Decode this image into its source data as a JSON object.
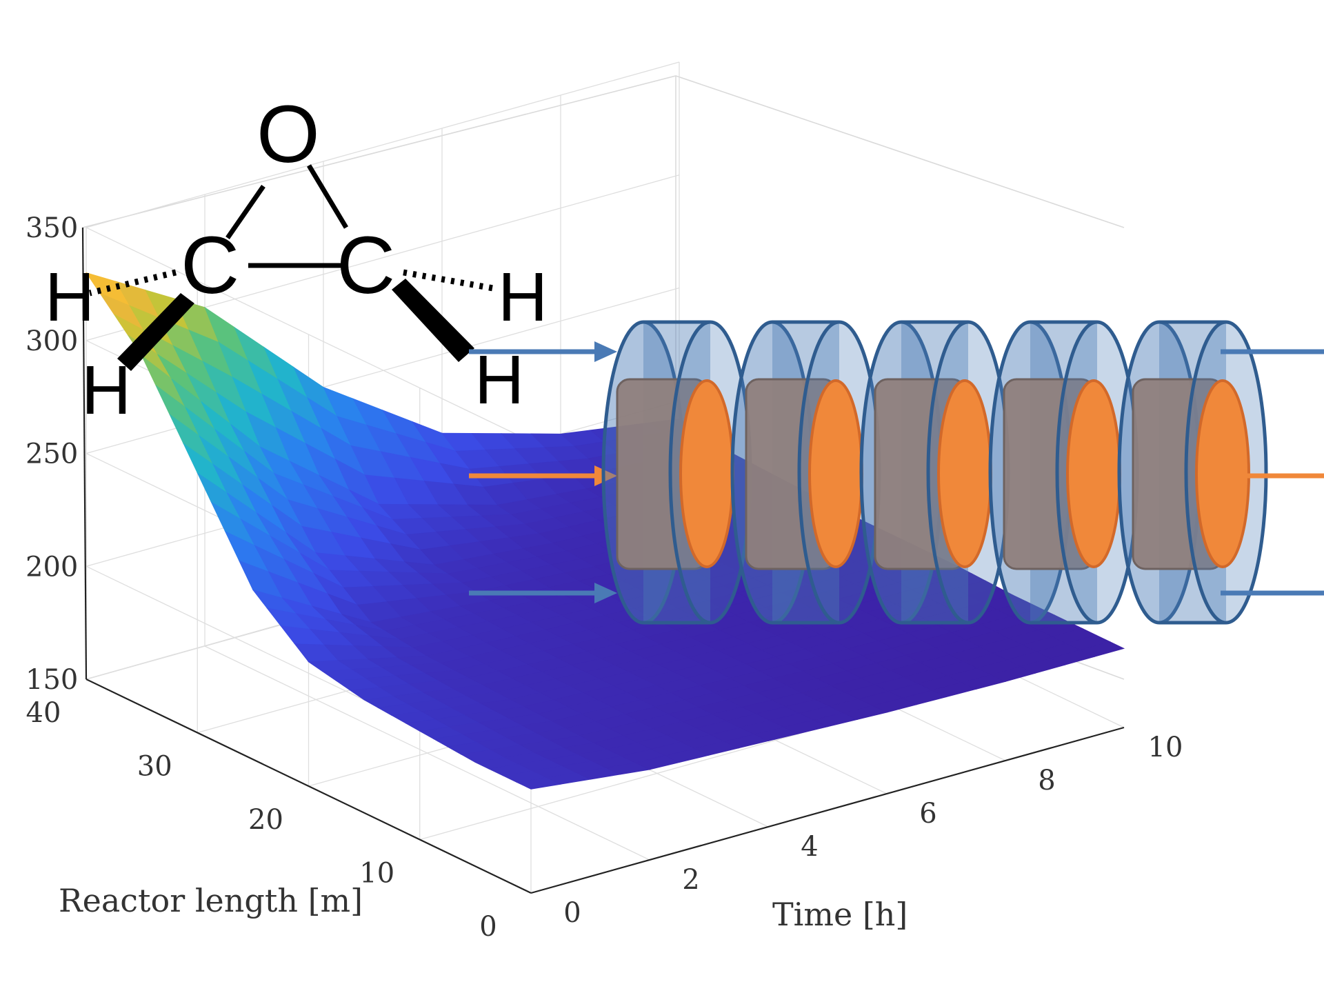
{
  "chart_data": {
    "type": "surface3d",
    "title": "",
    "xlabel": "Time [h]",
    "ylabel": "Reactor length [m]",
    "zlabel": "",
    "x_ticks": [
      "0",
      "2",
      "4",
      "6",
      "8",
      "10"
    ],
    "y_ticks": [
      "0",
      "10",
      "20",
      "30",
      "40"
    ],
    "z_ticks": [
      "150",
      "200",
      "250",
      "300",
      "350"
    ],
    "xlim": [
      0,
      10
    ],
    "ylim": [
      0,
      40
    ],
    "zlim": [
      150,
      350
    ],
    "grid": true,
    "colormap": "parula",
    "surface": {
      "time_h": [
        0,
        2,
        4,
        6,
        8,
        10
      ],
      "length_m": [
        0,
        5,
        10,
        15,
        20,
        25,
        30,
        35,
        40
      ],
      "temperature": [
        [
          196,
          190,
          188,
          186,
          185,
          185
        ],
        [
          196,
          190,
          188,
          186,
          185,
          185
        ],
        [
          198,
          191,
          189,
          187,
          186,
          185
        ],
        [
          200,
          192,
          189,
          187,
          186,
          186
        ],
        [
          205,
          193,
          190,
          188,
          187,
          186
        ],
        [
          225,
          196,
          191,
          188,
          187,
          186
        ],
        [
          265,
          215,
          195,
          190,
          188,
          187
        ],
        [
          305,
          250,
          210,
          195,
          190,
          188
        ],
        [
          330,
          300,
          250,
          215,
          200,
          192
        ]
      ]
    }
  },
  "overlay": {
    "molecule": {
      "name": "ethylene oxide",
      "atoms": [
        "O",
        "C",
        "C",
        "H",
        "H",
        "H",
        "H"
      ]
    },
    "reactor_schematic": {
      "segments": 5,
      "colors": {
        "coolant": "#4a7ab5",
        "tube": "#8f7f7c",
        "feed": "#f0883a",
        "outline": "#2f5c8f"
      }
    }
  }
}
